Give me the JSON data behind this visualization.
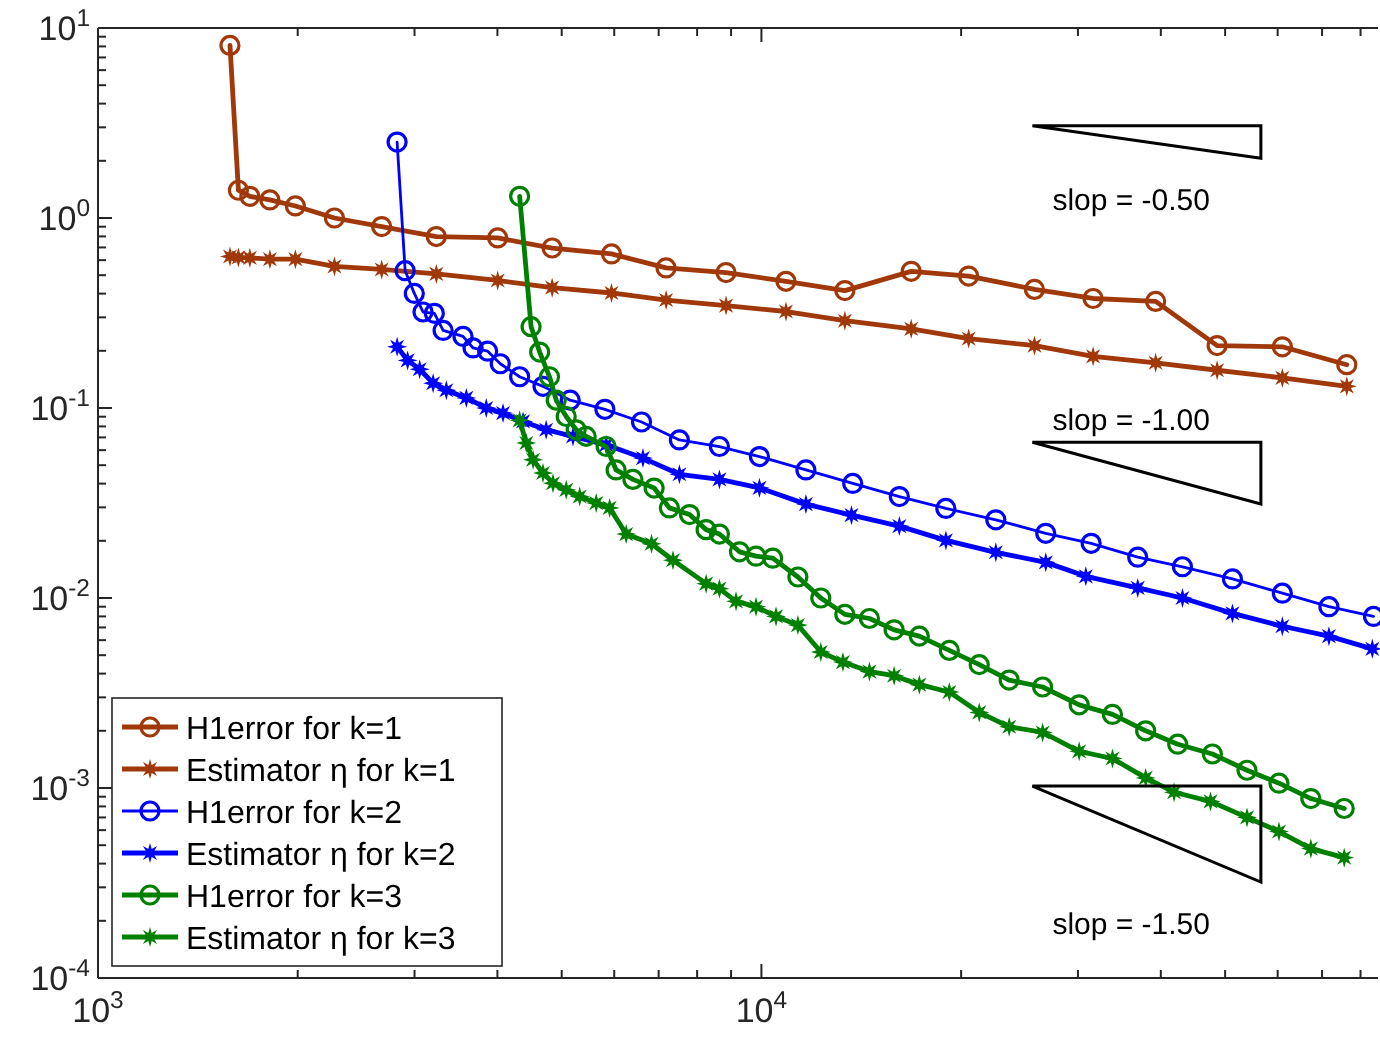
{
  "chart_data": {
    "type": "line",
    "log": "xy",
    "grid": false,
    "legend": "bottom left",
    "line_style": "solid",
    "xlim": [
      1000,
      85000
    ],
    "ylim": [
      0.0001,
      10
    ],
    "xticks": [
      {
        "value": 1000,
        "label": "10$^{3}$"
      },
      {
        "value": 2000,
        "label": null
      },
      {
        "value": 3000,
        "label": null
      },
      {
        "value": 4000,
        "label": null
      },
      {
        "value": 5000,
        "label": null
      },
      {
        "value": 6000,
        "label": null
      },
      {
        "value": 7000,
        "label": null
      },
      {
        "value": 8000,
        "label": null
      },
      {
        "value": 9000,
        "label": null
      },
      {
        "value": 10000,
        "label": "10$^{4}$"
      },
      {
        "value": 20000,
        "label": null
      },
      {
        "value": 30000,
        "label": null
      },
      {
        "value": 40000,
        "label": null
      },
      {
        "value": 50000,
        "label": null
      },
      {
        "value": 60000,
        "label": null
      },
      {
        "value": 70000,
        "label": null
      },
      {
        "value": 80000,
        "label": null
      }
    ],
    "yticks": [
      {
        "value": 0.0001,
        "label": "10$^{-4}$"
      },
      {
        "value": 0.0002,
        "label": null
      },
      {
        "value": 0.0003,
        "label": null
      },
      {
        "value": 0.0004,
        "label": null
      },
      {
        "value": 0.0005,
        "label": null
      },
      {
        "value": 0.0006,
        "label": null
      },
      {
        "value": 0.0007,
        "label": null
      },
      {
        "value": 0.0008,
        "label": null
      },
      {
        "value": 0.0009,
        "label": null
      },
      {
        "value": 0.001,
        "label": "10$^{-3}$"
      },
      {
        "value": 0.002,
        "label": null
      },
      {
        "value": 0.003,
        "label": null
      },
      {
        "value": 0.004,
        "label": null
      },
      {
        "value": 0.005,
        "label": null
      },
      {
        "value": 0.006,
        "label": null
      },
      {
        "value": 0.007,
        "label": null
      },
      {
        "value": 0.008,
        "label": null
      },
      {
        "value": 0.009,
        "label": null
      },
      {
        "value": 0.01,
        "label": "10$^{-2}$"
      },
      {
        "value": 0.02,
        "label": null
      },
      {
        "value": 0.03,
        "label": null
      },
      {
        "value": 0.04,
        "label": null
      },
      {
        "value": 0.05,
        "label": null
      },
      {
        "value": 0.06,
        "label": null
      },
      {
        "value": 0.07,
        "label": null
      },
      {
        "value": 0.08,
        "label": null
      },
      {
        "value": 0.09,
        "label": null
      },
      {
        "value": 0.1,
        "label": "10$^{-1}$"
      },
      {
        "value": 0.2,
        "label": null
      },
      {
        "value": 0.3,
        "label": null
      },
      {
        "value": 0.4,
        "label": null
      },
      {
        "value": 0.5,
        "label": null
      },
      {
        "value": 0.6,
        "label": null
      },
      {
        "value": 0.7,
        "label": null
      },
      {
        "value": 0.8,
        "label": null
      },
      {
        "value": 0.9,
        "label": null
      },
      {
        "value": 1,
        "label": "10$^{0}$"
      },
      {
        "value": 2,
        "label": null
      },
      {
        "value": 3,
        "label": null
      },
      {
        "value": 4,
        "label": null
      },
      {
        "value": 5,
        "label": null
      },
      {
        "value": 6,
        "label": null
      },
      {
        "value": 7,
        "label": null
      },
      {
        "value": 8,
        "label": null
      },
      {
        "value": 9,
        "label": null
      },
      {
        "value": 10,
        "label": "10$^{1}$"
      }
    ],
    "annotations": [
      "slop = -0.50",
      "slop = -1.00",
      "slop = -1.50"
    ],
    "series": [
      {
        "name": "H1error for k=1",
        "color": "#a0380a",
        "marker": "circle",
        "x": [
          1581,
          1628,
          1694,
          1816,
          1984,
          2272,
          2677,
          3236,
          4004,
          4837,
          5943,
          7183,
          8845,
          10890,
          13360,
          16820,
          20530,
          25800,
          31620,
          39290,
          48630,
          60990,
          76280
        ],
        "values": [
          8.1,
          1.4,
          1.3,
          1.245,
          1.157,
          1.0,
          0.901,
          0.798,
          0.785,
          0.695,
          0.647,
          0.546,
          0.516,
          0.464,
          0.415,
          0.524,
          0.495,
          0.421,
          0.377,
          0.364,
          0.213,
          0.21,
          0.169
        ]
      },
      {
        "name": "Estimator η for k=1",
        "color": "#a0380a",
        "marker": "star",
        "x": [
          1581,
          1628,
          1694,
          1816,
          1984,
          2272,
          2677,
          3236,
          4004,
          4837,
          5943,
          7183,
          8845,
          10890,
          13360,
          16820,
          20530,
          25800,
          31620,
          39290,
          48630,
          60990,
          76280
        ],
        "values": [
          0.627,
          0.62,
          0.617,
          0.607,
          0.607,
          0.556,
          0.536,
          0.508,
          0.469,
          0.43,
          0.403,
          0.37,
          0.346,
          0.322,
          0.288,
          0.261,
          0.232,
          0.213,
          0.187,
          0.173,
          0.158,
          0.144,
          0.13
        ]
      },
      {
        "name": "H1error for k=2",
        "color": "#0000ff",
        "marker": "circle",
        "x": [
          2824,
          2904,
          2998,
          3090,
          3214,
          3313,
          3550,
          3676,
          3867,
          4040,
          4321,
          4686,
          5150,
          5809,
          6597,
          7523,
          8644,
          9931,
          11670,
          13730,
          16140,
          18970,
          22560,
          26830,
          31410,
          36920,
          43120,
          51290,
          60990,
          71690,
          83690
        ],
        "values": [
          2.51,
          0.528,
          0.401,
          0.32,
          0.315,
          0.256,
          0.238,
          0.207,
          0.199,
          0.171,
          0.146,
          0.13,
          0.11,
          0.0984,
          0.0844,
          0.0679,
          0.0627,
          0.0555,
          0.0472,
          0.0401,
          0.0342,
          0.0296,
          0.0258,
          0.0219,
          0.0194,
          0.0164,
          0.0146,
          0.0126,
          0.0106,
          0.009,
          0.008
        ]
      },
      {
        "name": "Estimator η for k=2",
        "color": "#0000ff",
        "marker": "star",
        "x": [
          2824,
          2929,
          3054,
          3200,
          3350,
          3591,
          3848,
          4079,
          4372,
          4737,
          5200,
          5834,
          6629,
          7523,
          8644,
          9931,
          11670,
          13670,
          16140,
          18970,
          22560,
          26830,
          30830,
          36920,
          43120,
          51290,
          60990,
          71690,
          83340
        ],
        "values": [
          0.21,
          0.178,
          0.16,
          0.135,
          0.124,
          0.113,
          0.1,
          0.094,
          0.085,
          0.0768,
          0.0709,
          0.064,
          0.0545,
          0.0448,
          0.0421,
          0.038,
          0.0312,
          0.0273,
          0.0239,
          0.0201,
          0.0174,
          0.0154,
          0.013,
          0.0113,
          0.01,
          0.0083,
          0.0071,
          0.0063,
          0.0054
        ]
      },
      {
        "name": "H1error for k=3",
        "color": "#008000",
        "marker": "circle",
        "x": [
          4321,
          4496,
          4632,
          4793,
          4906,
          5079,
          5258,
          5443,
          5834,
          6039,
          6402,
          6892,
          7266,
          7792,
          8254,
          8644,
          9268,
          9815,
          10400,
          11350,
          12290,
          13360,
          14550,
          15850,
          17300,
          19200,
          21300,
          23630,
          26540,
          30130,
          33820,
          37950,
          42420,
          47840,
          53950,
          60280,
          67330,
          75600
        ],
        "values": [
          1.3,
          0.268,
          0.197,
          0.146,
          0.11,
          0.0902,
          0.0768,
          0.0709,
          0.0627,
          0.0472,
          0.0421,
          0.0379,
          0.0298,
          0.0275,
          0.0229,
          0.0217,
          0.0175,
          0.0166,
          0.0162,
          0.0129,
          0.01,
          0.0082,
          0.0078,
          0.0068,
          0.0063,
          0.0053,
          0.00446,
          0.0037,
          0.0034,
          0.00274,
          0.00244,
          0.002,
          0.0017,
          0.00151,
          0.00124,
          0.00106,
          0.00088,
          0.00078
        ]
      },
      {
        "name": "Estimator η for k=3",
        "color": "#008000",
        "marker": "star",
        "x": [
          4321,
          4422,
          4527,
          4686,
          4851,
          5079,
          5322,
          5636,
          5905,
          6254,
          6829,
          7357,
          8254,
          8644,
          9157,
          9815,
          10520,
          11350,
          12290,
          13270,
          14550,
          15850,
          17300,
          19200,
          21300,
          23630,
          26540,
          30130,
          33820,
          37950,
          41880,
          47530,
          53950,
          60280,
          67330,
          75600
        ],
        "values": [
          0.0861,
          0.0654,
          0.0534,
          0.0455,
          0.0402,
          0.0371,
          0.0342,
          0.0316,
          0.0298,
          0.0217,
          0.0193,
          0.0158,
          0.0119,
          0.0112,
          0.0096,
          0.009,
          0.008,
          0.0072,
          0.0052,
          0.0046,
          0.0041,
          0.0039,
          0.0035,
          0.0032,
          0.0025,
          0.0021,
          0.00196,
          0.00156,
          0.00143,
          0.00113,
          0.00095,
          0.00085,
          0.0007,
          0.00059,
          0.00048,
          0.00043
        ]
      }
    ]
  }
}
